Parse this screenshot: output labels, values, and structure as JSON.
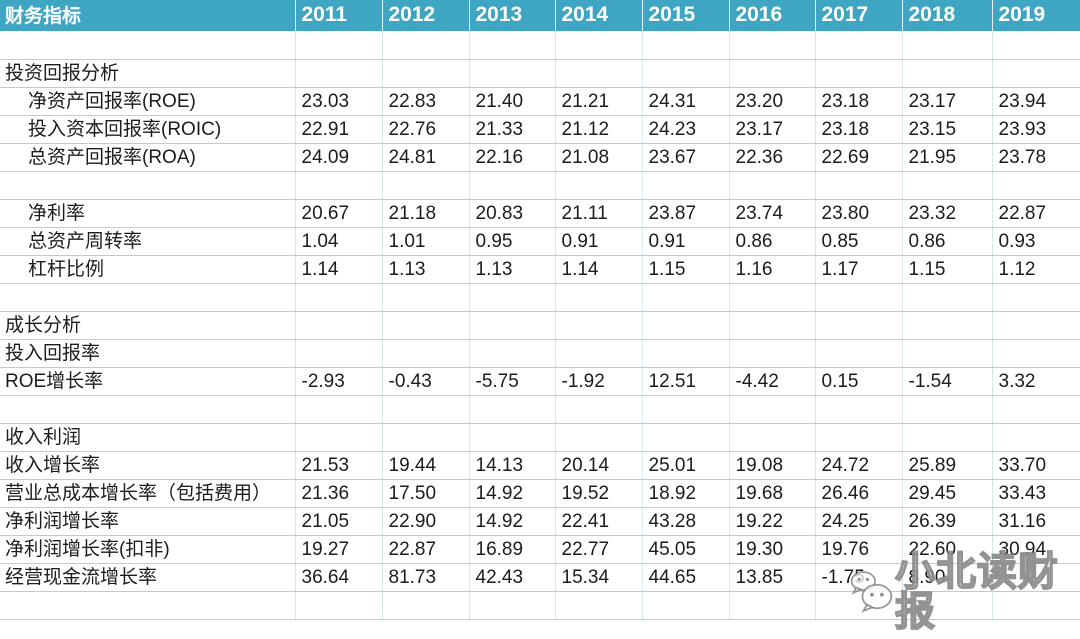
{
  "header": {
    "title": "财务指标",
    "years": [
      "2011",
      "2012",
      "2013",
      "2014",
      "2015",
      "2016",
      "2017",
      "2018",
      "2019"
    ]
  },
  "chart_data": {
    "type": "table",
    "title": "财务指标",
    "columns": [
      "财务指标",
      "2011",
      "2012",
      "2013",
      "2014",
      "2015",
      "2016",
      "2017",
      "2018",
      "2019"
    ],
    "rows": [
      {
        "type": "spacer",
        "label": "",
        "indent": false,
        "values": [
          "",
          "",
          "",
          "",
          "",
          "",
          "",
          "",
          ""
        ]
      },
      {
        "type": "section",
        "label": "投资回报分析",
        "indent": false,
        "values": [
          "",
          "",
          "",
          "",
          "",
          "",
          "",
          "",
          ""
        ]
      },
      {
        "type": "data",
        "label": "净资产回报率(ROE)",
        "indent": true,
        "values": [
          "23.03",
          "22.83",
          "21.40",
          "21.21",
          "24.31",
          "23.20",
          "23.18",
          "23.17",
          "23.94"
        ]
      },
      {
        "type": "data",
        "label": "投入资本回报率(ROIC)",
        "indent": true,
        "values": [
          "22.91",
          "22.76",
          "21.33",
          "21.12",
          "24.23",
          "23.17",
          "23.18",
          "23.15",
          "23.93"
        ]
      },
      {
        "type": "data",
        "label": "总资产回报率(ROA)",
        "indent": true,
        "values": [
          "24.09",
          "24.81",
          "22.16",
          "21.08",
          "23.67",
          "22.36",
          "22.69",
          "21.95",
          "23.78"
        ]
      },
      {
        "type": "spacer",
        "label": "",
        "indent": false,
        "values": [
          "",
          "",
          "",
          "",
          "",
          "",
          "",
          "",
          ""
        ]
      },
      {
        "type": "data",
        "label": "净利率",
        "indent": true,
        "values": [
          "20.67",
          "21.18",
          "20.83",
          "21.11",
          "23.87",
          "23.74",
          "23.80",
          "23.32",
          "22.87"
        ]
      },
      {
        "type": "data",
        "label": "总资产周转率",
        "indent": true,
        "values": [
          "1.04",
          "1.01",
          "0.95",
          "0.91",
          "0.91",
          "0.86",
          "0.85",
          "0.86",
          "0.93"
        ]
      },
      {
        "type": "data",
        "label": "杠杆比例",
        "indent": true,
        "values": [
          "1.14",
          "1.13",
          "1.13",
          "1.14",
          "1.15",
          "1.16",
          "1.17",
          "1.15",
          "1.12"
        ]
      },
      {
        "type": "spacer",
        "label": "",
        "indent": false,
        "values": [
          "",
          "",
          "",
          "",
          "",
          "",
          "",
          "",
          ""
        ]
      },
      {
        "type": "section",
        "label": "成长分析",
        "indent": false,
        "values": [
          "",
          "",
          "",
          "",
          "",
          "",
          "",
          "",
          ""
        ]
      },
      {
        "type": "data",
        "label": "投入回报率",
        "indent": false,
        "values": [
          "",
          "",
          "",
          "",
          "",
          "",
          "",
          "",
          ""
        ]
      },
      {
        "type": "data",
        "label": "ROE增长率",
        "indent": false,
        "values": [
          "-2.93",
          "-0.43",
          "-5.75",
          "-1.92",
          "12.51",
          "-4.42",
          "0.15",
          "-1.54",
          "3.32"
        ]
      },
      {
        "type": "spacer",
        "label": "",
        "indent": false,
        "values": [
          "",
          "",
          "",
          "",
          "",
          "",
          "",
          "",
          ""
        ]
      },
      {
        "type": "section",
        "label": "收入利润",
        "indent": false,
        "values": [
          "",
          "",
          "",
          "",
          "",
          "",
          "",
          "",
          ""
        ]
      },
      {
        "type": "data",
        "label": "收入增长率",
        "indent": false,
        "values": [
          "21.53",
          "19.44",
          "14.13",
          "20.14",
          "25.01",
          "19.08",
          "24.72",
          "25.89",
          "33.70"
        ]
      },
      {
        "type": "data",
        "label": "营业总成本增长率（包括费用）",
        "indent": false,
        "values": [
          "21.36",
          "17.50",
          "14.92",
          "19.52",
          "18.92",
          "19.68",
          "26.46",
          "29.45",
          "33.43"
        ]
      },
      {
        "type": "data",
        "label": "净利润增长率",
        "indent": false,
        "values": [
          "21.05",
          "22.90",
          "14.92",
          "22.41",
          "43.28",
          "19.22",
          "24.25",
          "26.39",
          "31.16"
        ]
      },
      {
        "type": "data",
        "label": "净利润增长率(扣非)",
        "indent": false,
        "values": [
          "19.27",
          "22.87",
          "16.89",
          "22.77",
          "45.05",
          "19.30",
          "19.76",
          "22.60",
          "30.94"
        ]
      },
      {
        "type": "data",
        "label": "经营现金流增长率",
        "indent": false,
        "values": [
          "36.64",
          "81.73",
          "42.43",
          "15.34",
          "44.65",
          "13.85",
          "-1.75",
          "8.90",
          ""
        ]
      },
      {
        "type": "spacer",
        "label": "",
        "indent": false,
        "values": [
          "",
          "",
          "",
          "",
          "",
          "",
          "",
          "",
          ""
        ]
      }
    ]
  },
  "watermark": {
    "text": "小北读财报",
    "icon": "wechat-chat-bubbles"
  },
  "colors": {
    "header_bg": "#3EA6C3",
    "header_text": "#FFFFFF",
    "grid_horizontal": "#A7D4E2",
    "grid_vertical": "#D8E5EC",
    "body_text": "#1C1C1C",
    "background": "#FFFFFF"
  }
}
